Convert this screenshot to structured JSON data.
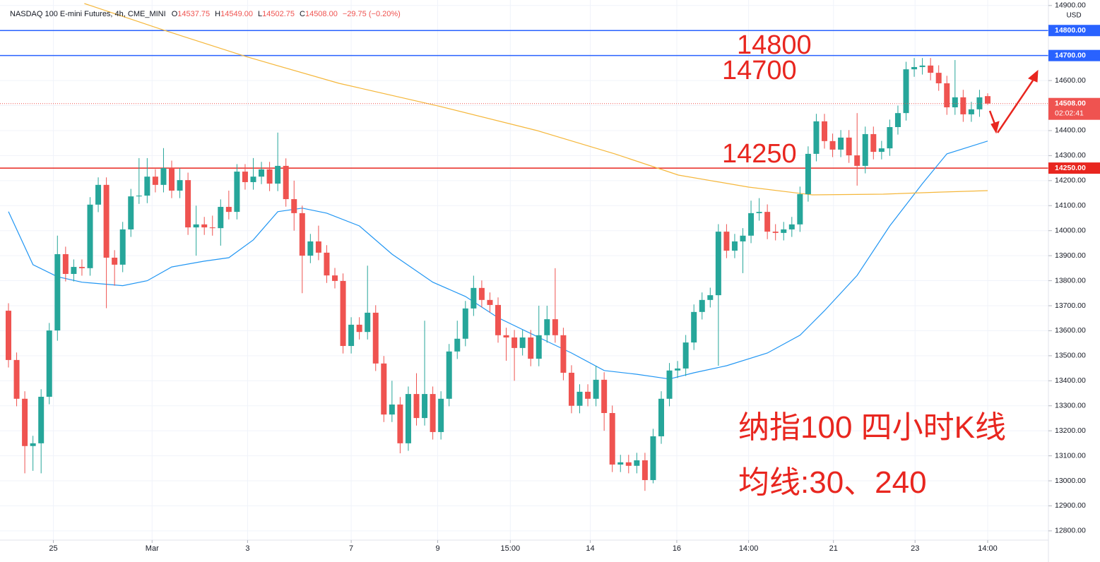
{
  "chart_data": {
    "type": "candlestick",
    "title": "NASDAQ 100 E-mini Futures, 4h, CME_MINI",
    "legend_letters": [
      "O",
      "H",
      "L",
      "C"
    ],
    "legend_values": [
      "14537.75",
      "14549.00",
      "14502.75",
      "14508.00"
    ],
    "change": "−29.75 (−0.20%)",
    "currency": "USD",
    "up_color": "#26a69a",
    "down_color": "#ef5350",
    "grid": true,
    "ylim": [
      12763,
      14922
    ],
    "xlim": [
      -1,
      126
    ],
    "yticks": [
      {
        "value": 12800,
        "label": "12800.00"
      },
      {
        "value": 12900,
        "label": "12900.00"
      },
      {
        "value": 13000,
        "label": "13000.00"
      },
      {
        "value": 13100,
        "label": "13100.00"
      },
      {
        "value": 13200,
        "label": "13200.00"
      },
      {
        "value": 13300,
        "label": "13300.00"
      },
      {
        "value": 13400,
        "label": "13400.00"
      },
      {
        "value": 13500,
        "label": "13500.00"
      },
      {
        "value": 13600,
        "label": "13600.00"
      },
      {
        "value": 13700,
        "label": "13700.00"
      },
      {
        "value": 13800,
        "label": "13800.00"
      },
      {
        "value": 13900,
        "label": "13900.00"
      },
      {
        "value": 14000,
        "label": "14000.00"
      },
      {
        "value": 14100,
        "label": "14100.00"
      },
      {
        "value": 14200,
        "label": "14200.00"
      },
      {
        "value": 14300,
        "label": "14300.00"
      },
      {
        "value": 14400,
        "label": "14400.00"
      },
      {
        "value": 14500,
        "label": "14500.00"
      },
      {
        "value": 14600,
        "label": "14600.00"
      },
      {
        "value": 14700,
        "label": "14700.00"
      },
      {
        "value": 14800,
        "label": "14800.00"
      },
      {
        "value": 14900,
        "label": "14900.00"
      }
    ],
    "xticks": [
      {
        "value": 5.5,
        "label": "25"
      },
      {
        "value": 17.6,
        "label": "Mar"
      },
      {
        "value": 29.3,
        "label": "3"
      },
      {
        "value": 42,
        "label": "7"
      },
      {
        "value": 52.6,
        "label": "9"
      },
      {
        "value": 61.5,
        "label": "15:00"
      },
      {
        "value": 71.3,
        "label": "14"
      },
      {
        "value": 81.9,
        "label": "16"
      },
      {
        "value": 90.7,
        "label": "14:00"
      },
      {
        "value": 101.1,
        "label": "21"
      },
      {
        "value": 111.1,
        "label": "23"
      },
      {
        "value": 120,
        "label": "14:00"
      }
    ],
    "open": [
      13680,
      13483,
      13328,
      13139,
      13150,
      13336,
      13601,
      13906,
      13827,
      13855,
      13850,
      14104,
      14183,
      13892,
      13864,
      14005,
      14137,
      14140,
      14216,
      14183,
      14250,
      14160,
      14202,
      14013,
      14025,
      14013,
      14010,
      14095,
      14075,
      14236,
      14194,
      14216,
      14245,
      14188,
      14259,
      14126,
      14070,
      13900,
      13957,
      13912,
      13821,
      13799,
      13539,
      13624,
      13595,
      13672,
      13469,
      13265,
      13305,
      13150,
      13347,
      13251,
      13347,
      13195,
      13328,
      13517,
      13568,
      13689,
      13771,
      13723,
      13703,
      13582,
      13573,
      13531,
      13573,
      13488,
      13582,
      13646,
      13582,
      13432,
      13300,
      13356,
      13328,
      13404,
      13271,
      13065,
      13074,
      13060,
      13082,
      13003,
      13178,
      13328,
      13441,
      13449,
      13553,
      13675,
      13723,
      13742,
      13996,
      13920,
      13957,
      13980,
      14070,
      14075,
      13996,
      13991,
      14005,
      14025,
      14146,
      14307,
      14437,
      14358,
      14324,
      14372,
      14301,
      14259,
      14386,
      14315,
      14329,
      14414,
      14470,
      14645,
      14654,
      14660,
      14631,
      14589,
      14493,
      14533,
      14465,
      14485,
      14537.75
    ],
    "high": [
      13710,
      13513,
      13358,
      13180,
      13366,
      13631,
      13980,
      13936,
      13885,
      13885,
      14134,
      14213,
      14213,
      13922,
      14035,
      14167,
      14290,
      14290,
      14246,
      14330,
      14280,
      14250,
      14232,
      14100,
      14055,
      14060,
      14125,
      14160,
      14266,
      14266,
      14290,
      14275,
      14275,
      14392,
      14289,
      14200,
      14100,
      13987,
      14020,
      13942,
      13851,
      13829,
      13654,
      13654,
      13860,
      13702,
      13499,
      13400,
      13335,
      13377,
      13430,
      13640,
      13377,
      13358,
      13547,
      13640,
      13719,
      13820,
      13801,
      13753,
      13733,
      13612,
      13603,
      13603,
      13603,
      13700,
      13700,
      13850,
      13612,
      13462,
      13386,
      13386,
      13460,
      13434,
      13301,
      13104,
      13104,
      13112,
      13112,
      13208,
      13358,
      13471,
      13479,
      13583,
      13705,
      13753,
      13772,
      14026,
      14026,
      13987,
      14010,
      14120,
      14130,
      14105,
      14026,
      14035,
      14055,
      14176,
      14337,
      14467,
      14467,
      14388,
      14402,
      14402,
      14470,
      14416,
      14416,
      14359,
      14444,
      14500,
      14675,
      14690,
      14690,
      14690,
      14661,
      14619,
      14682,
      14563,
      14515,
      14563,
      14549
    ],
    "low": [
      13453,
      13298,
      13030,
      13040,
      13030,
      13306,
      13560,
      13797,
      13797,
      13820,
      13820,
      14074,
      13690,
      13780,
      13834,
      13975,
      14107,
      14110,
      14153,
      14153,
      14130,
      14130,
      13983,
      13900,
      13983,
      13980,
      13940,
      14045,
      14045,
      14164,
      14164,
      14186,
      14158,
      14158,
      14096,
      14000,
      13750,
      13870,
      13882,
      13791,
      13769,
      13509,
      13509,
      13565,
      13565,
      13439,
      13235,
      13235,
      13110,
      13120,
      13221,
      13221,
      13165,
      13165,
      13298,
      13487,
      13538,
      13659,
      13693,
      13673,
      13552,
      13480,
      13400,
      13501,
      13458,
      13458,
      13552,
      13552,
      13402,
      13270,
      13270,
      13298,
      13298,
      13200,
      13035,
      13035,
      13030,
      13030,
      12960,
      12990,
      13148,
      13298,
      13411,
      13419,
      13523,
      13645,
      13693,
      13460,
      13890,
      13890,
      13830,
      13950,
      14040,
      13966,
      13961,
      13961,
      13975,
      13995,
      14116,
      14277,
      14328,
      14294,
      14294,
      14271,
      14180,
      14229,
      14285,
      14285,
      14299,
      14384,
      14440,
      14615,
      14624,
      14601,
      14559,
      14463,
      14463,
      14435,
      14435,
      14455,
      14502.75
    ],
    "close": [
      13483,
      13328,
      13139,
      13150,
      13336,
      13601,
      13906,
      13827,
      13855,
      13850,
      14104,
      14183,
      13892,
      13864,
      14005,
      14137,
      14140,
      14216,
      14183,
      14250,
      14160,
      14202,
      14013,
      14025,
      14013,
      14010,
      14095,
      14075,
      14236,
      14194,
      14216,
      14245,
      14188,
      14259,
      14126,
      14070,
      13900,
      13957,
      13912,
      13821,
      13799,
      13539,
      13624,
      13595,
      13672,
      13469,
      13265,
      13305,
      13150,
      13347,
      13251,
      13347,
      13195,
      13328,
      13517,
      13568,
      13689,
      13771,
      13723,
      13703,
      13582,
      13573,
      13531,
      13573,
      13488,
      13582,
      13646,
      13582,
      13432,
      13300,
      13356,
      13328,
      13404,
      13271,
      13065,
      13074,
      13060,
      13082,
      13003,
      13178,
      13328,
      13441,
      13449,
      13553,
      13675,
      13723,
      13742,
      13996,
      13920,
      13957,
      13980,
      14070,
      14075,
      13996,
      13991,
      14005,
      14025,
      14146,
      14307,
      14437,
      14358,
      14324,
      14372,
      14301,
      14259,
      14386,
      14315,
      14329,
      14414,
      14470,
      14645,
      14654,
      14660,
      14631,
      14589,
      14493,
      14533,
      14465,
      14485,
      14533,
      14508
    ],
    "series": [
      {
        "color": "#2196f3",
        "x": [
          0,
          3,
          6,
          9,
          14,
          17,
          20,
          24,
          27,
          30,
          33,
          36,
          39,
          43,
          47,
          52,
          56,
          60,
          65,
          69,
          73,
          77,
          81,
          84,
          88,
          93,
          97,
          100,
          104,
          108,
          112,
          115,
          120
        ],
        "values": [
          14076,
          13864,
          13816,
          13794,
          13780,
          13800,
          13855,
          13878,
          13892,
          13963,
          14076,
          14090,
          14070,
          14019,
          13906,
          13794,
          13737,
          13652,
          13573,
          13511,
          13441,
          13426,
          13407,
          13432,
          13460,
          13511,
          13582,
          13680,
          13821,
          14019,
          14188,
          14307,
          14358
        ]
      },
      {
        "color": "#f5b73b",
        "x": [
          9.3,
          18.9,
          29.1,
          40.5,
          52.6,
          64.8,
          74.3,
          82.1,
          90.7,
          98.5,
          107.2,
          114.1,
          120
        ],
        "values": [
          14908,
          14803,
          14696,
          14589,
          14499,
          14400,
          14307,
          14222,
          14174,
          14143,
          14146,
          14154,
          14160
        ]
      }
    ],
    "levels": [
      {
        "value": 14800,
        "label": "14800.00",
        "color": "#2962ff"
      },
      {
        "value": 14700,
        "label": "14700.00",
        "color": "#2962ff"
      },
      {
        "value": 14250,
        "label": "14250.00",
        "color": "#e8261f"
      }
    ],
    "last_price": {
      "value": 14508,
      "label": "14508.00",
      "countdown": "02:02:41",
      "color": "#ef5350"
    },
    "annotations": [
      "14800",
      "14700",
      "14250"
    ],
    "caption": [
      "纳指100 四小时K线",
      "均线:30、240"
    ]
  }
}
